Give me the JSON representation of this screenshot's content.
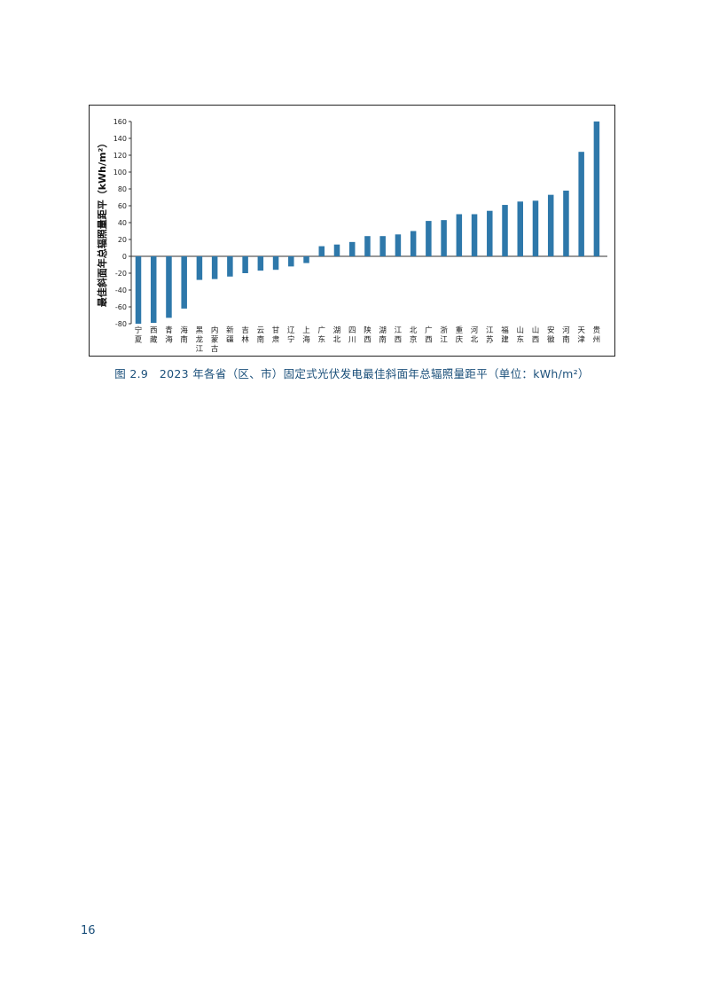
{
  "chart_data": {
    "type": "bar",
    "ylabel": "最佳斜面年总辐照量距平（kWh/m²）",
    "ylim": [
      -80,
      160
    ],
    "yticks": [
      -80,
      -60,
      -40,
      -20,
      0,
      20,
      40,
      60,
      80,
      100,
      120,
      140,
      160
    ],
    "grid": false,
    "legend": "none",
    "bar_color": "#2e78aa",
    "categories": [
      "宁夏",
      "西藏",
      "青海",
      "海南",
      "黑龙江",
      "内蒙古",
      "新疆",
      "吉林",
      "云南",
      "甘肃",
      "辽宁",
      "上海",
      "广东",
      "湖北",
      "四川",
      "陕西",
      "湖南",
      "江西",
      "北京",
      "广西",
      "浙江",
      "重庆",
      "河北",
      "江苏",
      "福建",
      "山东",
      "山西",
      "安徽",
      "河南",
      "天津",
      "贵州"
    ],
    "values": [
      -80,
      -79,
      -73,
      -62,
      -28,
      -27,
      -24,
      -20,
      -17,
      -16,
      -12,
      -8,
      12,
      14,
      17,
      24,
      24,
      26,
      30,
      42,
      43,
      50,
      50,
      54,
      61,
      65,
      66,
      73,
      78,
      124,
      160
    ]
  },
  "caption": "图 2.9　2023 年各省（区、市）固定式光伏发电最佳斜面年总辐照量距平（单位：kWh/m²）",
  "page_number": "16"
}
